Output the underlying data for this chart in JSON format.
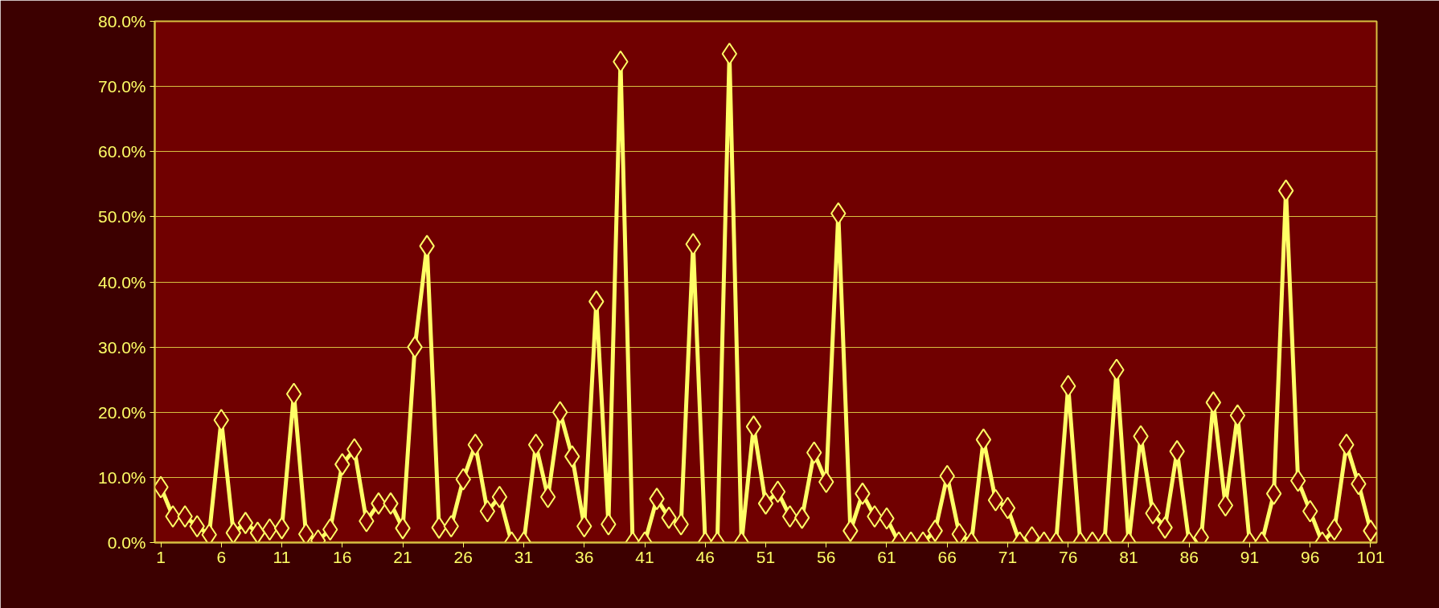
{
  "chart_data": {
    "type": "line",
    "x": [
      1,
      2,
      3,
      4,
      5,
      6,
      7,
      8,
      9,
      10,
      11,
      12,
      13,
      14,
      15,
      16,
      17,
      18,
      19,
      20,
      21,
      22,
      23,
      24,
      25,
      26,
      27,
      28,
      29,
      30,
      31,
      32,
      33,
      34,
      35,
      36,
      37,
      38,
      39,
      40,
      41,
      42,
      43,
      44,
      45,
      46,
      47,
      48,
      49,
      50,
      51,
      52,
      53,
      54,
      55,
      56,
      57,
      58,
      59,
      60,
      61,
      62,
      63,
      64,
      65,
      66,
      67,
      68,
      69,
      70,
      71,
      72,
      73,
      74,
      75,
      76,
      77,
      78,
      79,
      80,
      81,
      82,
      83,
      84,
      85,
      86,
      87,
      88,
      89,
      90,
      91,
      92,
      93,
      94,
      95,
      96,
      97,
      98,
      99,
      100,
      101
    ],
    "series": [
      {
        "color": "#ffff66",
        "values": [
          8.5,
          4,
          4,
          2.5,
          1.2,
          18.8,
          1.5,
          3,
          1.5,
          2,
          2.2,
          22.8,
          1.3,
          0.3,
          2,
          12,
          14.3,
          3.3,
          6,
          6,
          2.2,
          30,
          45.5,
          2.3,
          2.5,
          9.7,
          15,
          4.8,
          7,
          0,
          0,
          15,
          7,
          20,
          13.2,
          2.5,
          37,
          2.8,
          73.8,
          0,
          0,
          6.7,
          3.8,
          2.8,
          45.8,
          0,
          0,
          75,
          0,
          17.8,
          6,
          7.8,
          4,
          3.8,
          13.8,
          9.3,
          50.5,
          1.8,
          7.5,
          4,
          3.7,
          0,
          0,
          0,
          1.8,
          10.2,
          1.3,
          0,
          15.8,
          6.5,
          5.3,
          0,
          0.8,
          0,
          0,
          24,
          0,
          0,
          0,
          26.5,
          0,
          16.3,
          4.5,
          2.3,
          14,
          0,
          0.8,
          21.5,
          5.7,
          19.5,
          0,
          0,
          7.5,
          54,
          9.5,
          4.8,
          0,
          2,
          15,
          9,
          1.8
        ]
      }
    ],
    "xlim": [
      0.5,
      101.5
    ],
    "xticks": [
      1,
      6,
      11,
      16,
      21,
      26,
      31,
      36,
      41,
      46,
      51,
      56,
      61,
      66,
      71,
      76,
      81,
      86,
      91,
      96,
      101
    ],
    "ylim": [
      0,
      80
    ],
    "yticks": [
      {
        "value": 0,
        "label": "0.0%"
      },
      {
        "value": 10,
        "label": "10.0%"
      },
      {
        "value": 20,
        "label": "20.0%"
      },
      {
        "value": 30,
        "label": "30.0%"
      },
      {
        "value": 40,
        "label": "40.0%"
      },
      {
        "value": 50,
        "label": "50.0%"
      },
      {
        "value": 60,
        "label": "60.0%"
      },
      {
        "value": 70,
        "label": "70.0%"
      },
      {
        "value": 80,
        "label": "80.0%"
      }
    ],
    "grid": "y",
    "marker": "diamond",
    "line_style": "solid"
  }
}
